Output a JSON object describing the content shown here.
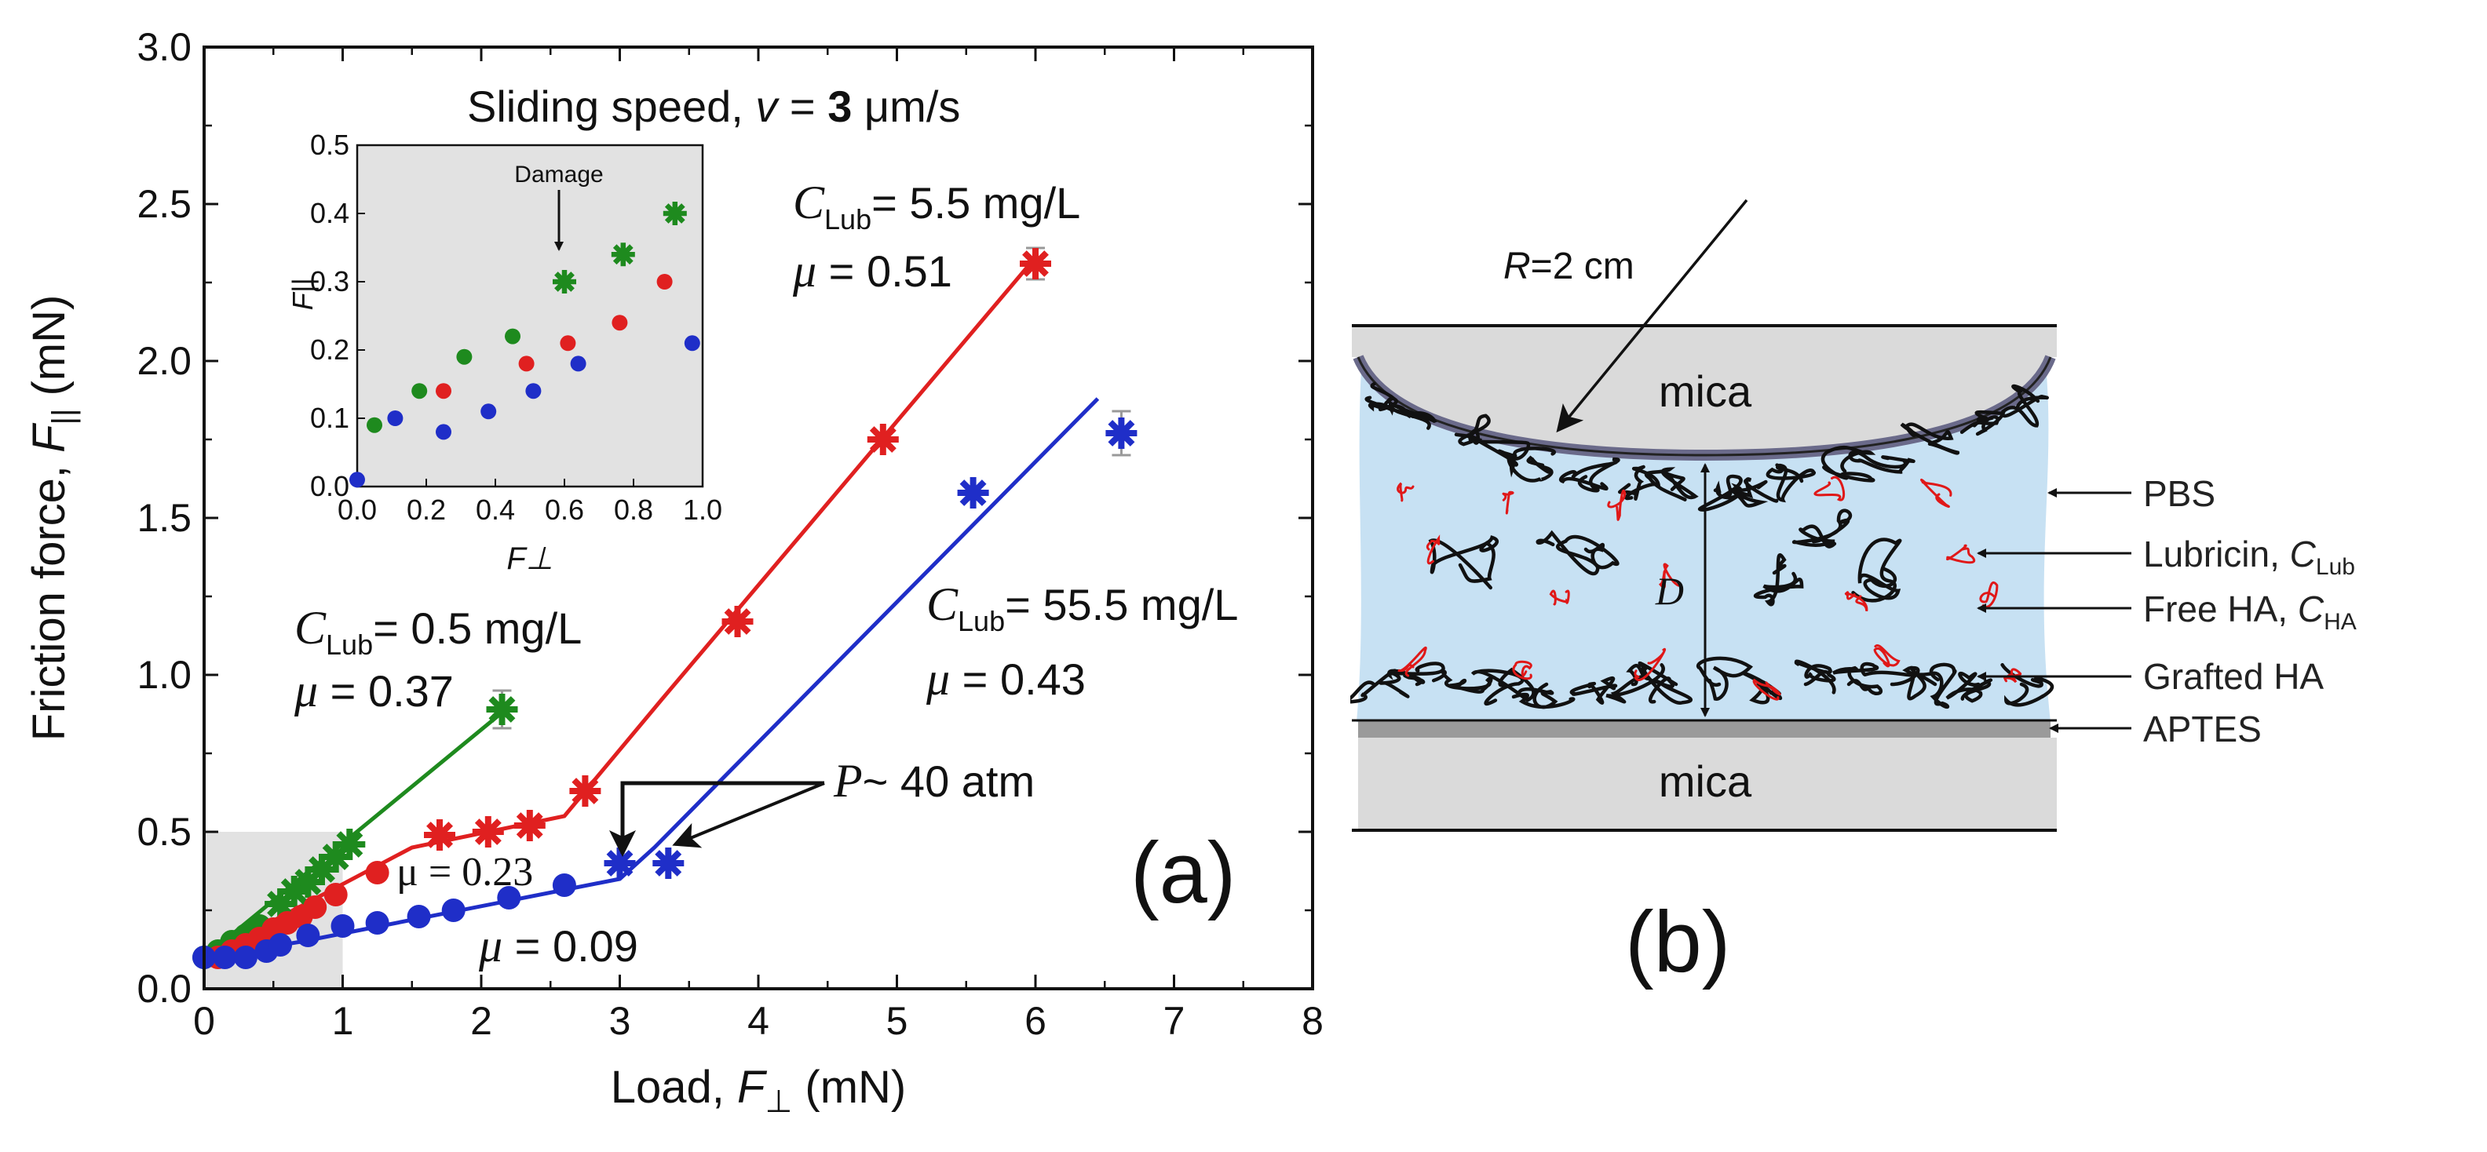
{
  "chart_data": [
    {
      "type": "scatter",
      "panel": "(a)",
      "title": "Sliding speed, v = 3 μm/s",
      "title_parts": {
        "prefix": "Sliding speed, ",
        "var": "v",
        "eq": " = ",
        "num": "3",
        "unit": " μm/s"
      },
      "xlabel": "Load, F⊥ (mN)",
      "xlabel_parts": {
        "prefix": "Load, ",
        "var": "F",
        "sub": "⊥",
        "unit": " (mN)"
      },
      "ylabel": "Friction force, F|| (mN)",
      "ylabel_parts": {
        "prefix": "Friction force, ",
        "var": "F",
        "sub": "||",
        "unit": " (mN)"
      },
      "xlim": [
        0,
        8
      ],
      "ylim": [
        0,
        3.0
      ],
      "xticks": [
        "0",
        "1",
        "2",
        "3",
        "4",
        "5",
        "6",
        "7",
        "8"
      ],
      "yticks": [
        "0.0",
        "0.5",
        "1.0",
        "1.5",
        "2.0",
        "2.5",
        "3.0"
      ],
      "highlight_box": {
        "x": [
          0,
          1
        ],
        "y": [
          0,
          0.5
        ]
      },
      "series": [
        {
          "name": "C_Lub = 0.5 mg/L",
          "color": "#1e8a1e",
          "circles": [
            [
              0.0,
              0.1
            ],
            [
              0.1,
              0.12
            ],
            [
              0.2,
              0.15
            ],
            [
              0.3,
              0.17
            ],
            [
              0.4,
              0.2
            ]
          ],
          "stars": [
            [
              0.55,
              0.27
            ],
            [
              0.65,
              0.31
            ],
            [
              0.75,
              0.34
            ],
            [
              0.85,
              0.38
            ],
            [
              0.95,
              0.42
            ],
            [
              1.05,
              0.46
            ],
            [
              2.15,
              0.89
            ]
          ],
          "fit": [
            [
              0.0,
              0.1
            ],
            [
              2.15,
              0.88
            ]
          ],
          "error_bars": [
            [
              2.15,
              0.89,
              0.06
            ]
          ]
        },
        {
          "name": "C_Lub = 5.5 mg/L",
          "color": "#e02020",
          "circles": [
            [
              0.1,
              0.1
            ],
            [
              0.2,
              0.12
            ],
            [
              0.3,
              0.14
            ],
            [
              0.4,
              0.16
            ],
            [
              0.5,
              0.19
            ],
            [
              0.6,
              0.21
            ],
            [
              0.7,
              0.23
            ],
            [
              0.8,
              0.26
            ],
            [
              0.95,
              0.3
            ],
            [
              1.25,
              0.37
            ]
          ],
          "stars": [
            [
              1.7,
              0.49
            ],
            [
              2.05,
              0.5
            ],
            [
              2.35,
              0.52
            ],
            [
              2.75,
              0.63
            ],
            [
              3.85,
              1.17
            ],
            [
              4.9,
              1.75
            ],
            [
              6.0,
              2.31
            ]
          ],
          "fit": [
            [
              0.0,
              0.1
            ],
            [
              1.5,
              0.45
            ],
            [
              2.6,
              0.55
            ],
            [
              3.3,
              0.92
            ],
            [
              6.0,
              2.33
            ]
          ],
          "error_bars": [
            [
              6.0,
              2.31,
              0.05
            ]
          ]
        },
        {
          "name": "C_Lub = 55.5 mg/L",
          "color": "#1f2ec8",
          "circles": [
            [
              0.0,
              0.1
            ],
            [
              0.15,
              0.1
            ],
            [
              0.3,
              0.1
            ],
            [
              0.45,
              0.12
            ],
            [
              0.55,
              0.14
            ],
            [
              0.75,
              0.17
            ],
            [
              1.0,
              0.2
            ],
            [
              1.25,
              0.21
            ],
            [
              1.55,
              0.23
            ],
            [
              1.8,
              0.25
            ],
            [
              2.2,
              0.29
            ],
            [
              2.6,
              0.33
            ]
          ],
          "stars": [
            [
              3.0,
              0.4
            ],
            [
              3.35,
              0.4
            ],
            [
              5.55,
              1.58
            ],
            [
              6.62,
              1.77
            ]
          ],
          "fit": [
            [
              0.0,
              0.1
            ],
            [
              0.7,
              0.15
            ],
            [
              3.0,
              0.35
            ],
            [
              3.25,
              0.45
            ],
            [
              6.45,
              1.88
            ]
          ],
          "error_bars": [
            [
              6.62,
              1.77,
              0.07
            ]
          ]
        }
      ],
      "annotations": [
        {
          "id": "lub05",
          "text": "C_Lub = 0.5 mg/L",
          "parts": {
            "C": "C",
            "sub": "Lub",
            "rest": "= 0.5 mg/L"
          },
          "mu": "μ = 0.37",
          "mu_parts": {
            "sym": "μ",
            "rest": " = 0.37"
          }
        },
        {
          "id": "lub55",
          "text": "C_Lub = 5.5 mg/L",
          "parts": {
            "C": "C",
            "sub": "Lub",
            "rest": "= 5.5 mg/L"
          },
          "mu": "μ = 0.51",
          "mu_parts": {
            "sym": "μ",
            "rest": " = 0.51"
          }
        },
        {
          "id": "lub555",
          "text": "C_Lub = 55.5 mg/L",
          "parts": {
            "C": "C",
            "sub": "Lub",
            "rest": "= 55.5 mg/L"
          },
          "mu": "μ = 0.43",
          "mu_parts": {
            "sym": "μ",
            "rest": " = 0.43"
          }
        },
        {
          "id": "mu023",
          "text": "μ = 0.23"
        },
        {
          "id": "mu009",
          "text": "μ = 0.09",
          "parts": {
            "sym": "μ",
            "rest": " = 0.09"
          }
        },
        {
          "id": "pressure",
          "text": "P ~ 40 atm",
          "parts": {
            "var": "P",
            "rest": "~ 40 atm"
          }
        }
      ],
      "inset": {
        "xlabel": "F⊥",
        "ylabel": "F||",
        "xlim": [
          0,
          1.0
        ],
        "ylim": [
          0,
          0.5
        ],
        "xticks": [
          "0.0",
          "0.2",
          "0.4",
          "0.6",
          "0.8",
          "1.0"
        ],
        "yticks": [
          "0.0",
          "0.1",
          "0.2",
          "0.3",
          "0.4",
          "0.5"
        ],
        "annotation": "Damage",
        "series": [
          {
            "color": "#1e8a1e",
            "circles": [
              [
                0.05,
                0.09
              ],
              [
                0.18,
                0.14
              ],
              [
                0.31,
                0.19
              ],
              [
                0.45,
                0.22
              ]
            ],
            "stars": [
              [
                0.6,
                0.3
              ],
              [
                0.77,
                0.34
              ],
              [
                0.92,
                0.4
              ]
            ]
          },
          {
            "color": "#e02020",
            "circles": [
              [
                0.25,
                0.14
              ],
              [
                0.49,
                0.18
              ],
              [
                0.61,
                0.21
              ],
              [
                0.76,
                0.24
              ],
              [
                0.89,
                0.3
              ]
            ],
            "stars": []
          },
          {
            "color": "#1f2ec8",
            "circles": [
              [
                0.0,
                0.01
              ],
              [
                0.11,
                0.1
              ],
              [
                0.25,
                0.08
              ],
              [
                0.38,
                0.11
              ],
              [
                0.51,
                0.14
              ],
              [
                0.64,
                0.18
              ],
              [
                0.97,
                0.21
              ]
            ],
            "stars": []
          }
        ]
      }
    }
  ],
  "diagram": {
    "panel_label": "(b)",
    "radius_label": "R=2 cm",
    "radius_parts": {
      "var": "R",
      "rest": "=2 cm"
    },
    "mica_top": "mica",
    "mica_bottom": "mica",
    "gap_label": "D",
    "labels": {
      "pbs": "PBS",
      "lubricin": "Lubricin, C_Lub",
      "lubricin_parts": {
        "text": "Lubricin, ",
        "var": "C",
        "sub": "Lub"
      },
      "free_ha": "Free HA, C_HA",
      "free_ha_parts": {
        "text": "Free HA, ",
        "var": "C",
        "sub": "HA"
      },
      "grafted_ha": "Grafted HA",
      "aptes": "APTES"
    },
    "colors": {
      "solution": "#c7e1f3",
      "mica": "#dadada",
      "lubricin": "#e01818",
      "polymer": "#111111"
    }
  },
  "panel_a_label": "(a)"
}
